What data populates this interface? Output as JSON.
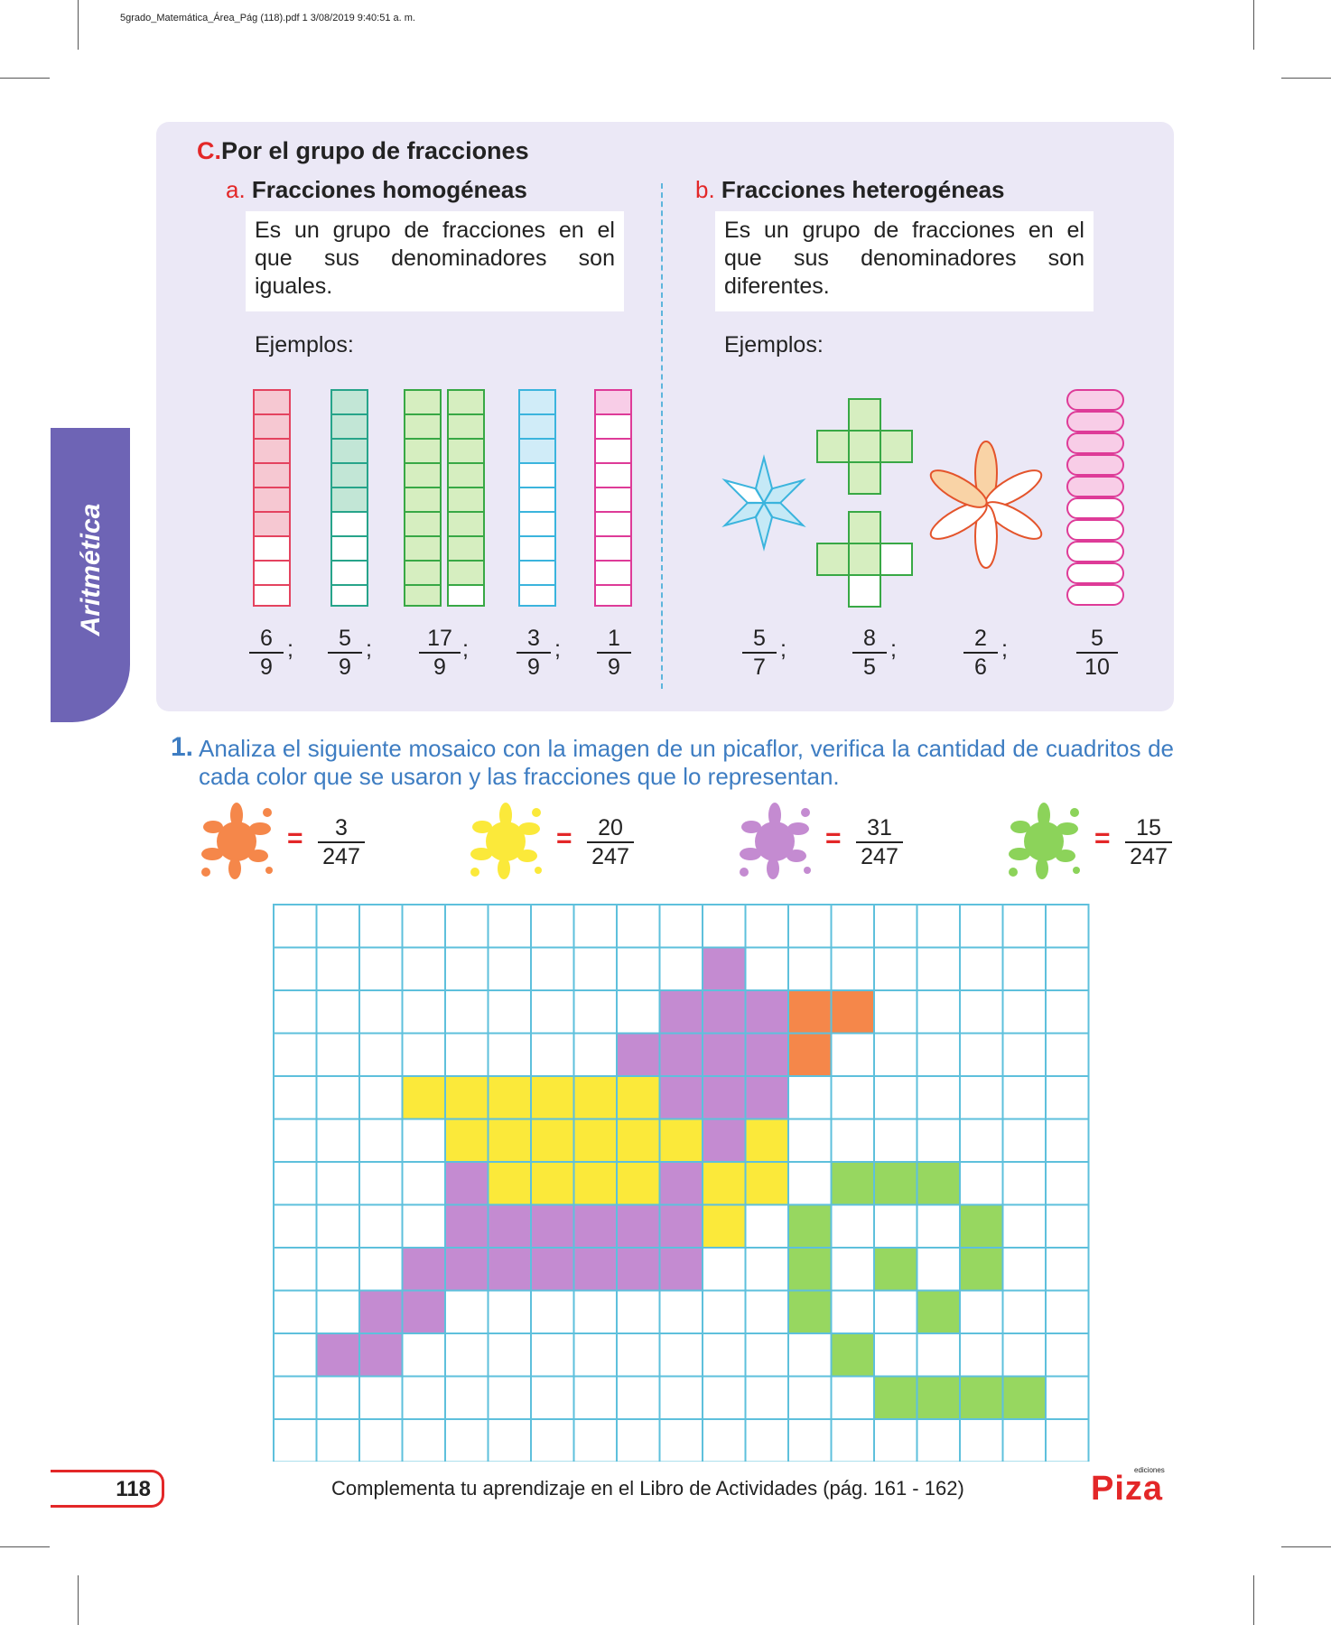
{
  "file_info": "5grado_Matemática_Área_Pág (118).pdf  1  3/08/2019  9:40:51 a. m.",
  "side_tab": "Aritmética",
  "section": {
    "letter": "C.",
    "title": "Por el grupo de fracciones"
  },
  "homogeneous": {
    "letter": "a.",
    "title": "Fracciones homogéneas",
    "definition": "Es un grupo de fracciones en el que sus denominadores son iguales.",
    "examples_label": "Ejemplos:",
    "fractions": [
      {
        "num": "6",
        "den": "9"
      },
      {
        "num": "5",
        "den": "9"
      },
      {
        "num": "17",
        "den": "9"
      },
      {
        "num": "3",
        "den": "9"
      },
      {
        "num": "1",
        "den": "9"
      }
    ],
    "separator": ";"
  },
  "heterogeneous": {
    "letter": "b.",
    "title": "Fracciones heterogéneas",
    "definition": "Es un grupo de fracciones en el que sus denominadores son diferentes.",
    "examples_label": "Ejemplos:",
    "fractions": [
      {
        "num": "5",
        "den": "7"
      },
      {
        "num": "8",
        "den": "5"
      },
      {
        "num": "2",
        "den": "6"
      },
      {
        "num": "5",
        "den": "10"
      }
    ],
    "separator": ";"
  },
  "exercise": {
    "number": "1.",
    "text": "Analiza el siguiente mosaico con la imagen de un picaflor, verifica la cantidad de cuadritos de cada color que se usaron y las fracciones que lo representan."
  },
  "legend": [
    {
      "color": "#f5874a",
      "num": "3",
      "den": "247"
    },
    {
      "color": "#fbe93a",
      "num": "20",
      "den": "247"
    },
    {
      "color": "#c48bd1",
      "num": "31",
      "den": "247"
    },
    {
      "color": "#8cd35a",
      "num": "15",
      "den": "247"
    }
  ],
  "equals": "=",
  "colors": {
    "orange": "#f5874a",
    "yellow": "#fbe93a",
    "purple": "#c48bd1",
    "green": "#97d760",
    "grid_line": "#5ec0dc",
    "accent_red": "#e32728",
    "panel": "#ebe8f6",
    "tab": "#6e64b5"
  },
  "mosaic": {
    "columns": 19,
    "rows": 13,
    "cells": [
      "...................",
      "..........P........",
      ".........PPPOO.....",
      "........PPPPO......",
      "...YYYYYYPPP.......",
      "....YYYYYYPY.......",
      "....PYYYYPYY.GGG...",
      "....PPPPPPY.G...G..",
      "...PPPPPPP..G.G.G..",
      "..PP........G..G...",
      ".PP..........G.....",
      "..............GGGG.",
      "..................."
    ]
  },
  "page_number": "118",
  "footer_text": "Complementa tu aprendizaje en el Libro de Actividades (pág. 161 - 162)",
  "logo": {
    "text": "Piza",
    "subtitle": "ediciones"
  }
}
